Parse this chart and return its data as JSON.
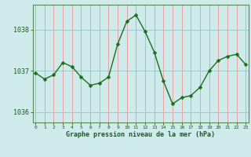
{
  "x": [
    0,
    1,
    2,
    3,
    4,
    5,
    6,
    7,
    8,
    9,
    10,
    11,
    12,
    13,
    14,
    15,
    16,
    17,
    18,
    19,
    20,
    21,
    22,
    23
  ],
  "y": [
    1036.95,
    1036.8,
    1036.9,
    1037.2,
    1037.1,
    1036.85,
    1036.65,
    1036.7,
    1036.85,
    1037.65,
    1038.2,
    1038.35,
    1037.95,
    1037.45,
    1036.75,
    1036.2,
    1036.35,
    1036.4,
    1036.6,
    1037.0,
    1037.25,
    1037.35,
    1037.4,
    1037.15
  ],
  "line_color": "#1a6e1a",
  "marker": "D",
  "marker_size": 2.5,
  "bg_color": "#ceeaea",
  "vgrid_color": "#e8a0a0",
  "hgrid_color": "#a0c8c8",
  "axis_color": "#1a5c1a",
  "spine_color": "#5a8a5a",
  "title": "Graphe pression niveau de la mer (hPa)",
  "xlabel_ticks": [
    0,
    1,
    2,
    3,
    4,
    5,
    6,
    7,
    8,
    9,
    10,
    11,
    12,
    13,
    14,
    15,
    16,
    17,
    18,
    19,
    20,
    21,
    22,
    23
  ],
  "ylim": [
    1035.75,
    1038.6
  ],
  "yticks": [
    1036,
    1037,
    1038
  ],
  "figsize": [
    3.2,
    2.0
  ],
  "dpi": 100
}
